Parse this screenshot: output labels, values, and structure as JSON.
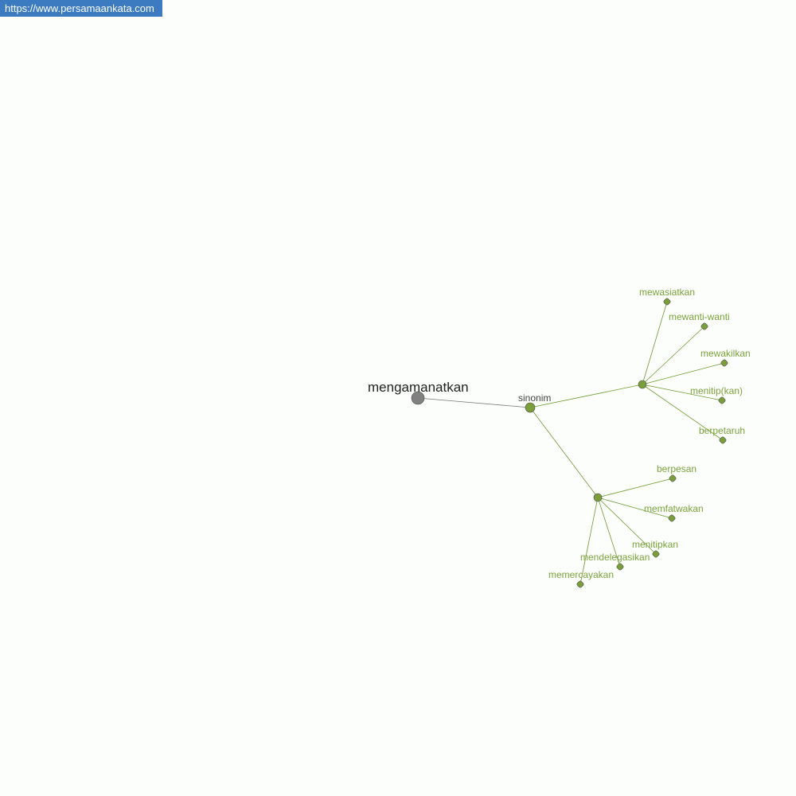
{
  "site_url": "https://www.persamaankata.com",
  "colors": {
    "root_node": "#808080",
    "accent": "#7a9e3a",
    "edge": "#6e9a2e",
    "url_bar": "#3c7bbf"
  },
  "graph": {
    "root": "mengamanatkan",
    "relation": "sinonim",
    "groups": [
      {
        "leaves": [
          "mewasiatkan",
          "mewanti-wanti",
          "mewakilkan",
          "menitip(kan)",
          "berpetaruh"
        ]
      },
      {
        "leaves": [
          "berpesan",
          "memfatwakan",
          "menitipkan",
          "mendelegasikan",
          "memercayakan"
        ]
      }
    ]
  }
}
